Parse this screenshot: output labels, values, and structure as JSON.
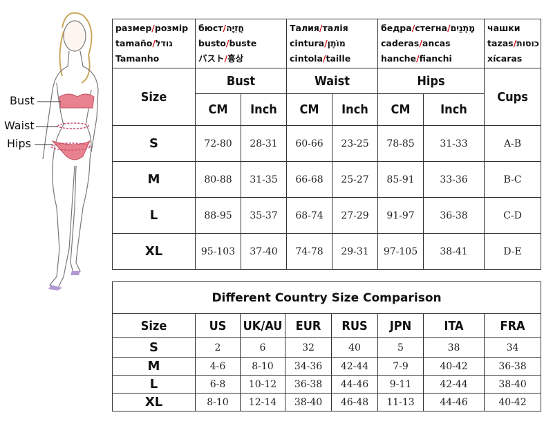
{
  "figure_labels": [
    "Bust",
    "Waist",
    "Hips"
  ],
  "size_table": {
    "header": [
      [
        "размер/розмір",
        "tamaño/גודל",
        "Tamanho"
      ],
      [
        "бюст/חֲזִיָּה",
        "busto/buste",
        "バスト/흉상"
      ],
      [
        "Талия/талія",
        "cintura/מוֹתֶן",
        "cintola/taille"
      ],
      [
        "бедра/стегна/מָתְנַיִם",
        "caderas/ancas",
        "hanche/fianchi"
      ],
      [
        "чашки",
        "tazas/כוסות",
        "xícaras"
      ]
    ],
    "groups": [
      "Size",
      "Bust",
      "Waist",
      "Hips",
      "Cups"
    ],
    "units": [
      "CM",
      "Inch",
      "CM",
      "Inch",
      "CM",
      "Inch"
    ],
    "rows": [
      [
        "S",
        "72-80",
        "28-31",
        "60-66",
        "23-25",
        "78-85",
        "31-33",
        "A-B"
      ],
      [
        "M",
        "80-88",
        "31-35",
        "66-68",
        "25-27",
        "85-91",
        "33-36",
        "B-C"
      ],
      [
        "L",
        "88-95",
        "35-37",
        "68-74",
        "27-29",
        "91-97",
        "36-38",
        "C-D"
      ],
      [
        "XL",
        "95-103",
        "37-40",
        "74-78",
        "29-31",
        "97-105",
        "38-41",
        "D-E"
      ]
    ]
  },
  "country_table": {
    "title": "Different Country Size Comparison",
    "header": [
      "Size",
      "US",
      "UK/AU",
      "EUR",
      "RUS",
      "JPN",
      "ITA",
      "FRA"
    ],
    "rows": [
      [
        "S",
        "2",
        "6",
        "32",
        "40",
        "5",
        "38",
        "34"
      ],
      [
        "M",
        "4-6",
        "8-10",
        "34-36",
        "42-44",
        "7-9",
        "40-42",
        "36-38"
      ],
      [
        "L",
        "6-8",
        "10-12",
        "36-38",
        "44-46",
        "9-11",
        "42-44",
        "38-40"
      ],
      [
        "XL",
        "8-10",
        "12-14",
        "38-40",
        "46-48",
        "11-13",
        "44-46",
        "40-42"
      ]
    ]
  }
}
